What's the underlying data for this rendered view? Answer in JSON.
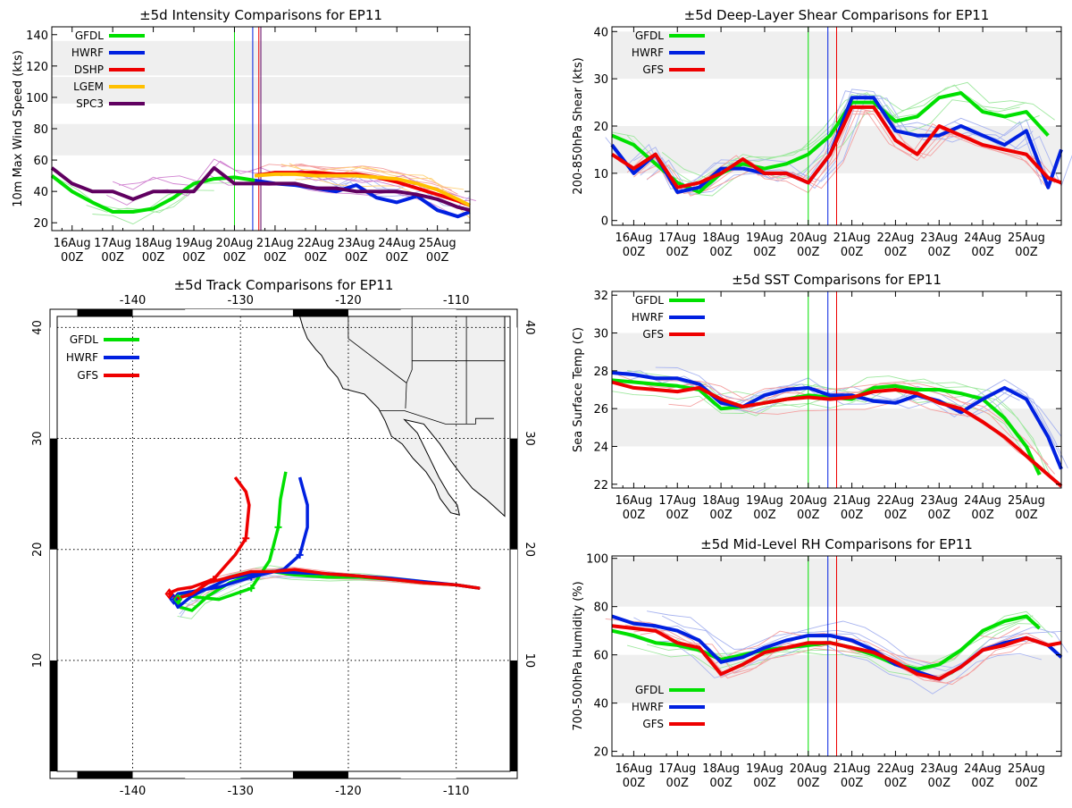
{
  "colors": {
    "GFDL": "#00e000",
    "HWRF": "#0020e0",
    "DSHP": "#ee0000",
    "LGEM": "#ffc000",
    "SPC3": "#600060",
    "GFS": "#ee0000",
    "shade": "#efefef",
    "land": "#f0f0f0"
  },
  "day_labels": [
    "16Aug",
    "17Aug",
    "18Aug",
    "19Aug",
    "20Aug",
    "21Aug",
    "22Aug",
    "23Aug",
    "24Aug",
    "25Aug"
  ],
  "hour_label": "00Z",
  "chart_data": [
    {
      "id": "intensity",
      "type": "line",
      "title": "±5d Intensity Comparisons for EP11",
      "ylabel": "10m Max Wind Speed (kts)",
      "xlim": [
        15.5,
        25.8
      ],
      "ylim": [
        15,
        145
      ],
      "yticks": [
        20,
        40,
        60,
        80,
        100,
        120,
        140
      ],
      "bands": [
        [
          63,
          83
        ],
        [
          96,
          113
        ],
        [
          114,
          136
        ]
      ],
      "vlines": [
        {
          "x": 20.0,
          "c": "GFDL"
        },
        {
          "x": 20.45,
          "c": "HWRF"
        },
        {
          "x": 20.6,
          "c": "DSHP"
        },
        {
          "x": 20.65,
          "c": "SPC3"
        }
      ],
      "series": [
        {
          "name": "GFDL",
          "x": [
            15.5,
            16,
            16.5,
            17,
            17.5,
            18,
            18.5,
            19,
            19.5,
            20,
            20.5
          ],
          "y": [
            50,
            40,
            33,
            27,
            27,
            29,
            36,
            45,
            48,
            49,
            47
          ]
        },
        {
          "name": "HWRF",
          "x": [
            20.5,
            21,
            21.5,
            22,
            22.5,
            23,
            23.5,
            24,
            24.5,
            25,
            25.5,
            25.8
          ],
          "y": [
            47,
            45,
            44,
            42,
            40,
            44,
            36,
            33,
            37,
            28,
            24,
            27
          ]
        },
        {
          "name": "DSHP",
          "x": [
            20.5,
            21,
            21.5,
            22,
            22.5,
            23,
            23.5,
            24,
            24.5,
            25,
            25.5,
            25.8
          ],
          "y": [
            50,
            52,
            52,
            52,
            51,
            51,
            49,
            46,
            42,
            38,
            34,
            31
          ]
        },
        {
          "name": "LGEM",
          "x": [
            20.5,
            21,
            21.5,
            22,
            22.5,
            23,
            23.5,
            24,
            24.5,
            25,
            25.5,
            25.8
          ],
          "y": [
            50,
            51,
            51,
            50,
            50,
            50,
            49,
            48,
            45,
            41,
            35,
            31
          ]
        },
        {
          "name": "SPC3",
          "x": [
            15.5,
            16,
            16.5,
            17,
            17.5,
            18,
            18.5,
            19,
            19.5,
            20,
            20.5,
            21,
            21.5,
            22,
            22.5,
            23,
            23.5,
            24,
            24.5,
            25,
            25.5,
            25.8
          ],
          "y": [
            55,
            45,
            40,
            40,
            35,
            40,
            40,
            40,
            55,
            45,
            45,
            45,
            45,
            42,
            42,
            40,
            40,
            40,
            38,
            35,
            30,
            28
          ]
        }
      ],
      "legend": [
        "GFDL",
        "HWRF",
        "DSHP",
        "LGEM",
        "SPC3"
      ]
    },
    {
      "id": "shear",
      "type": "line",
      "title": "±5d Deep-Layer Shear Comparisons for EP11",
      "ylabel": "200-850hPa Shear (kts)",
      "xlim": [
        15.5,
        25.8
      ],
      "ylim": [
        -1,
        41
      ],
      "yticks": [
        0,
        10,
        20,
        30,
        40
      ],
      "bands": [
        [
          10,
          20
        ],
        [
          30,
          40
        ]
      ],
      "vlines": [
        {
          "x": 20.0,
          "c": "GFDL"
        },
        {
          "x": 20.45,
          "c": "HWRF"
        },
        {
          "x": 20.65,
          "c": "GFS"
        }
      ],
      "series": [
        {
          "name": "GFDL",
          "x": [
            15.5,
            16,
            16.5,
            17,
            17.5,
            18,
            18.5,
            19,
            19.5,
            20,
            20.5,
            21,
            21.5,
            22,
            22.5,
            23,
            23.5,
            24,
            24.5,
            25,
            25.5
          ],
          "y": [
            18,
            16,
            12,
            8,
            6,
            10,
            12,
            11,
            12,
            14,
            18,
            25,
            25,
            21,
            22,
            26,
            27,
            23,
            22,
            23,
            18
          ]
        },
        {
          "name": "HWRF",
          "x": [
            15.5,
            16,
            16.5,
            17,
            17.5,
            18,
            18.5,
            19,
            19.5,
            20,
            20.5,
            21,
            21.5,
            22,
            22.5,
            23,
            23.5,
            24,
            24.5,
            25,
            25.5,
            25.8
          ],
          "y": [
            16,
            10,
            14,
            6,
            7,
            11,
            11,
            10,
            10,
            8,
            14,
            26,
            26,
            19,
            18,
            18,
            20,
            18,
            16,
            19,
            7,
            15
          ]
        },
        {
          "name": "GFS",
          "x": [
            15.5,
            16,
            16.5,
            17,
            17.5,
            18,
            18.5,
            19,
            19.5,
            20,
            20.5,
            21,
            21.5,
            22,
            22.5,
            23,
            23.5,
            24,
            24.5,
            25,
            25.5,
            25.8
          ],
          "y": [
            14,
            11,
            14,
            7,
            8,
            10,
            13,
            10,
            10,
            8,
            14,
            24,
            24,
            17,
            14,
            20,
            18,
            16,
            15,
            14,
            9,
            8
          ]
        }
      ],
      "legend": [
        "GFDL",
        "HWRF",
        "GFS"
      ]
    },
    {
      "id": "sst",
      "type": "line",
      "title": "±5d SST Comparisons for EP11",
      "ylabel": "Sea Surface Temp (C)",
      "xlim": [
        15.5,
        25.8
      ],
      "ylim": [
        21.8,
        32.2
      ],
      "yticks": [
        22,
        24,
        26,
        28,
        30,
        32
      ],
      "bands": [
        [
          24,
          26
        ],
        [
          28,
          30
        ]
      ],
      "vlines": [
        {
          "x": 20.0,
          "c": "GFDL"
        },
        {
          "x": 20.45,
          "c": "HWRF"
        },
        {
          "x": 20.65,
          "c": "GFS"
        }
      ],
      "series": [
        {
          "name": "GFDL",
          "x": [
            15.5,
            16,
            16.5,
            17,
            17.5,
            18,
            18.5,
            19,
            19.5,
            20,
            20.5,
            21,
            21.5,
            22,
            22.5,
            23,
            23.5,
            24,
            24.5,
            25,
            25.3
          ],
          "y": [
            27.5,
            27.4,
            27.3,
            27.2,
            27.0,
            26.0,
            26.1,
            26.3,
            26.5,
            26.7,
            26.6,
            26.5,
            27.1,
            27.2,
            27.0,
            27.0,
            26.8,
            26.5,
            25.5,
            24.0,
            22.5
          ]
        },
        {
          "name": "HWRF",
          "x": [
            15.5,
            16,
            16.5,
            17,
            17.5,
            18,
            18.5,
            19,
            19.5,
            20,
            20.5,
            21,
            21.5,
            22,
            22.5,
            23,
            23.5,
            24,
            24.5,
            25,
            25.5,
            25.8
          ],
          "y": [
            27.9,
            27.8,
            27.6,
            27.6,
            27.3,
            26.3,
            26.1,
            26.7,
            27.0,
            27.1,
            26.7,
            26.7,
            26.4,
            26.3,
            26.7,
            26.4,
            25.8,
            26.5,
            27.1,
            26.5,
            24.5,
            22.8
          ]
        },
        {
          "name": "GFS",
          "x": [
            15.5,
            16,
            16.5,
            17,
            17.5,
            18,
            18.5,
            19,
            19.5,
            20,
            20.5,
            21,
            21.5,
            22,
            22.5,
            23,
            23.5,
            24,
            24.5,
            25,
            25.5,
            25.8
          ],
          "y": [
            27.4,
            27.1,
            27.0,
            26.9,
            27.1,
            26.5,
            26.1,
            26.3,
            26.5,
            26.6,
            26.5,
            26.6,
            26.9,
            27.0,
            26.8,
            26.3,
            26.0,
            25.3,
            24.5,
            23.5,
            22.5,
            21.9
          ]
        }
      ],
      "legend": [
        "GFDL",
        "HWRF",
        "GFS"
      ]
    },
    {
      "id": "rh",
      "type": "line",
      "title": "±5d Mid-Level RH Comparisons for EP11",
      "ylabel": "700-500hPa Humidity (%)",
      "xlim": [
        15.5,
        25.8
      ],
      "ylim": [
        18,
        101
      ],
      "yticks": [
        20,
        40,
        60,
        80,
        100
      ],
      "bands": [
        [
          40,
          60
        ],
        [
          80,
          100
        ]
      ],
      "vlines": [
        {
          "x": 20.0,
          "c": "GFDL"
        },
        {
          "x": 20.45,
          "c": "HWRF"
        },
        {
          "x": 20.65,
          "c": "GFS"
        }
      ],
      "series": [
        {
          "name": "GFDL",
          "x": [
            15.5,
            16,
            16.5,
            17,
            17.5,
            18,
            18.5,
            19,
            19.5,
            20,
            20.5,
            21,
            21.5,
            22,
            22.5,
            23,
            23.5,
            24,
            24.5,
            25,
            25.3
          ],
          "y": [
            70,
            68,
            65,
            64,
            62,
            58,
            60,
            62,
            63,
            64,
            65,
            63,
            60,
            56,
            54,
            56,
            62,
            70,
            74,
            76,
            71
          ]
        },
        {
          "name": "HWRF",
          "x": [
            15.5,
            16,
            16.5,
            17,
            17.5,
            18,
            18.5,
            19,
            19.5,
            20,
            20.5,
            21,
            21.5,
            22,
            22.5,
            23,
            23.5,
            24,
            24.5,
            25,
            25.5,
            25.8
          ],
          "y": [
            76,
            73,
            72,
            70,
            66,
            57,
            59,
            63,
            66,
            68,
            68,
            66,
            62,
            56,
            53,
            50,
            55,
            62,
            65,
            67,
            64,
            59
          ]
        },
        {
          "name": "GFS",
          "x": [
            15.5,
            16,
            16.5,
            17,
            17.5,
            18,
            18.5,
            19,
            19.5,
            20,
            20.5,
            21,
            21.5,
            22,
            22.5,
            23,
            23.5,
            24,
            24.5,
            25,
            25.5,
            25.8
          ],
          "y": [
            72,
            71,
            70,
            65,
            63,
            52,
            56,
            61,
            63,
            65,
            65,
            63,
            61,
            57,
            52,
            50,
            55,
            62,
            64,
            67,
            64,
            65
          ]
        }
      ],
      "legend": [
        "GFDL",
        "HWRF",
        "GFS"
      ]
    },
    {
      "id": "track",
      "type": "line",
      "title": "±5d Track Comparisons for EP11",
      "xlim": [
        -147,
        -105
      ],
      "ylim": [
        0,
        41
      ],
      "lon_ticks": [
        -140,
        -130,
        -120,
        -110
      ],
      "lat_ticks": [
        10,
        20,
        30,
        40
      ],
      "series": [
        {
          "name": "GFDL",
          "lon": [
            -107.8,
            -110,
            -113,
            -116,
            -119,
            -122,
            -125,
            -127,
            -129,
            -131,
            -133,
            -134.5,
            -135.6,
            -135.8,
            -135.3,
            -134,
            -132,
            -129,
            -127.3,
            -126.5,
            -126.3,
            -125.8
          ],
          "lat": [
            16.5,
            16.8,
            17.0,
            17.3,
            17.5,
            17.5,
            17.7,
            18.0,
            17.7,
            17.0,
            15.8,
            14.5,
            14.8,
            15.5,
            15.9,
            15.7,
            15.5,
            16.5,
            19.0,
            22.0,
            24.5,
            27.0
          ]
        },
        {
          "name": "HWRF",
          "lon": [
            -107.8,
            -110,
            -113,
            -116,
            -119,
            -122,
            -125,
            -127,
            -129,
            -131,
            -133,
            -134.5,
            -135.8,
            -136.2,
            -135.8,
            -134.5,
            -132,
            -129,
            -126,
            -124.5,
            -123.8,
            -123.8,
            -124.5
          ],
          "lat": [
            16.5,
            16.8,
            17.1,
            17.4,
            17.6,
            17.8,
            17.9,
            18.0,
            17.8,
            17.4,
            16.5,
            15.8,
            14.8,
            15.5,
            16.0,
            16.2,
            16.6,
            17.5,
            18.2,
            19.5,
            22.0,
            24.0,
            26.5
          ]
        },
        {
          "name": "GFS",
          "lon": [
            -107.8,
            -110,
            -113,
            -116,
            -119,
            -122,
            -125,
            -127,
            -129,
            -131,
            -133,
            -134.5,
            -135.8,
            -136.6,
            -136.3,
            -135.8,
            -134.5,
            -132.5,
            -130.5,
            -129.5,
            -129.2,
            -129.5,
            -130.5
          ],
          "lat": [
            16.5,
            16.8,
            17.0,
            17.3,
            17.6,
            17.8,
            18.2,
            18.0,
            18.0,
            17.5,
            17.0,
            16.0,
            15.6,
            16.0,
            16.2,
            16.4,
            16.6,
            17.3,
            19.5,
            21.0,
            24.0,
            25.2,
            26.5
          ]
        }
      ],
      "legend": [
        "GFDL",
        "HWRF",
        "GFS"
      ]
    }
  ]
}
